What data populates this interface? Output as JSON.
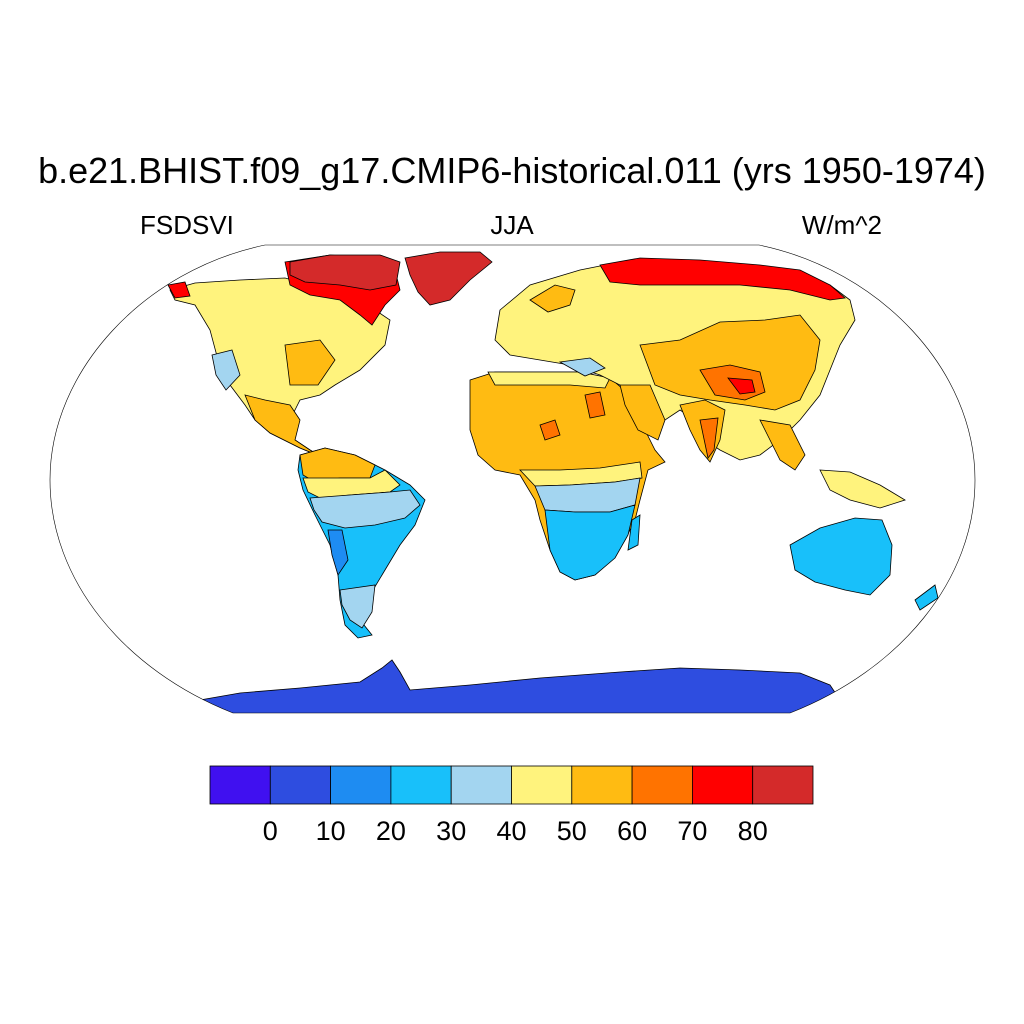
{
  "title": "b.e21.BHIST.f09_g17.CMIP6-historical.011 (yrs 1950-1974)",
  "left_label": "FSDSVI",
  "center_label": "JJA",
  "right_label": "W/m^2",
  "colorbar": {
    "colors": [
      "#4010f0",
      "#2e4de0",
      "#1e8cf2",
      "#18c0fa",
      "#a3d5f0",
      "#fff37d",
      "#ffbb12",
      "#ff7300",
      "#ff0000",
      "#d42a2a"
    ],
    "tick_labels": [
      "0",
      "10",
      "20",
      "30",
      "40",
      "50",
      "60",
      "70",
      "80"
    ]
  },
  "map": {
    "projection": "robinson",
    "ocean_color": "#ffffff",
    "regions": [
      {
        "name": "Canadian Arctic / Greenland",
        "level": "80+",
        "color": "#d42a2a"
      },
      {
        "name": "Northern Canada / Siberia coast",
        "level": "70-80",
        "color": "#ff0000"
      },
      {
        "name": "Tibetan Plateau",
        "level": "60-70",
        "color": "#ff7300"
      },
      {
        "name": "Sahara / Arabia / India",
        "level": "50-60",
        "color": "#ffbb12"
      },
      {
        "name": "Europe / N. Asia / USA",
        "level": "40-50",
        "color": "#fff37d"
      },
      {
        "name": "Central S. America / C. Africa",
        "level": "30-40",
        "color": "#a3d5f0"
      },
      {
        "name": "S. America / S. Africa / Australia",
        "level": "20-30",
        "color": "#18c0fa"
      },
      {
        "name": "Antarctica",
        "level": "0-10",
        "color": "#2e4de0"
      }
    ]
  }
}
